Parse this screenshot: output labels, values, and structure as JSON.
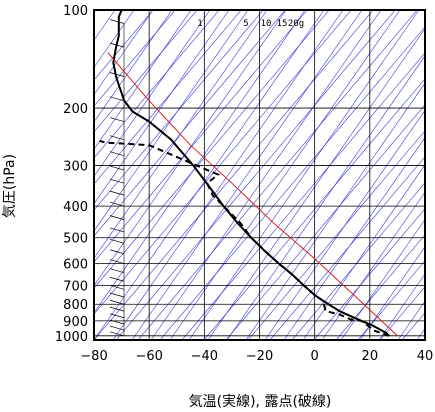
{
  "chart_data": {
    "type": "line",
    "title": "",
    "xlabel": "気温(実線), 露点(破線)",
    "ylabel": "気圧(hPa)",
    "xlim": [
      -80,
      40
    ],
    "ylim_pressure": [
      1030,
      100
    ],
    "y_scale": "log",
    "x_ticks": [
      -80,
      -60,
      -40,
      -20,
      0,
      20,
      40
    ],
    "y_ticks": [
      100,
      200,
      300,
      400,
      500,
      600,
      700,
      800,
      900,
      1000
    ],
    "x_tick_labels": [
      "−80",
      "−60",
      "−40",
      "−20",
      "0",
      "20",
      "40"
    ],
    "y_tick_labels": [
      "100",
      "200",
      "300",
      "400",
      "500",
      "600",
      "700",
      "800",
      "900",
      "1000"
    ],
    "mixing_ratio_labels": [
      "1",
      "5",
      "10",
      "15",
      "20g"
    ],
    "colors": {
      "isotherm_skewed": "#3a3ae0",
      "dry_adiabat": "#3a3ae0",
      "parcel_curve": "#e02020",
      "profile": "#000000",
      "grid": "#000000"
    },
    "series": [
      {
        "style": "solid",
        "x": [
          27,
          26,
          24,
          21,
          17,
          13,
          9,
          6,
          3,
          0,
          -4,
          -8,
          -13,
          -18,
          -23,
          -28,
          -33,
          -38,
          -44,
          -52,
          -60,
          -66,
          -69,
          -71,
          -72,
          -73,
          -72,
          -71,
          -71,
          -71,
          -70
        ],
        "y": [
          1000,
          980,
          960,
          930,
          900,
          870,
          840,
          810,
          780,
          750,
          700,
          650,
          600,
          550,
          500,
          450,
          400,
          350,
          300,
          250,
          220,
          205,
          190,
          170,
          160,
          145,
          130,
          120,
          110,
          105,
          100
        ]
      },
      {
        "style": "dashed",
        "x": [
          27,
          24,
          21,
          20,
          17,
          13,
          9,
          4,
          3,
          0,
          -4,
          -8,
          -13,
          -18,
          -23,
          -27,
          -33,
          -37,
          -39,
          -35,
          -60,
          -76,
          -78
        ],
        "y": [
          1000,
          980,
          960,
          940,
          900,
          890,
          860,
          840,
          780,
          750,
          700,
          650,
          600,
          550,
          500,
          450,
          400,
          370,
          340,
          320,
          260,
          255,
          252
        ]
      },
      {
        "style": "solid",
        "x": [
          30,
          15,
          0,
          -15,
          -30,
          -45,
          -60,
          -75
        ],
        "y": [
          1000,
          760,
          580,
          450,
          340,
          260,
          190,
          135
        ]
      }
    ],
    "wind_barbs": {
      "pressures": [
        1000,
        960,
        920,
        880,
        840,
        800,
        760,
        720,
        680,
        640,
        600,
        560,
        520,
        480,
        440,
        400,
        370,
        340,
        310,
        280,
        250,
        220,
        190,
        160,
        130,
        110
      ]
    }
  }
}
